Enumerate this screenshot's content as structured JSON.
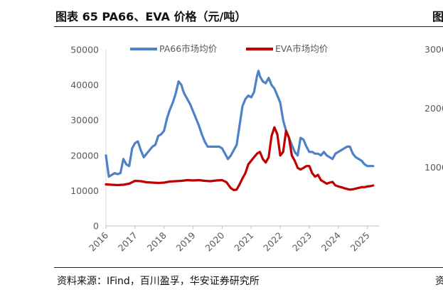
{
  "header": {
    "title": "图表 65 PA66、EVA 价格（元/吨）",
    "title_clip": "图"
  },
  "footer": {
    "source": "资料来源：IFind，百川盈孚，华安证券研究所",
    "source_clip": "资"
  },
  "chart_data": [
    {
      "type": "line",
      "title": "",
      "xlabel": "",
      "ylabel": "",
      "ylim": [
        0,
        50000
      ],
      "xlim": [
        2016,
        2025.4
      ],
      "yticks": [
        0,
        10000,
        20000,
        30000,
        40000,
        50000
      ],
      "xticks": [
        "2016",
        "2017",
        "2018",
        "2019",
        "2020",
        "2021",
        "2022",
        "2023",
        "2024",
        "2025"
      ],
      "legend": "top",
      "series": [
        {
          "name": "PA66市场均价",
          "color": "#4F81C7",
          "x": [
            2016.0,
            2016.05,
            2016.1,
            2016.2,
            2016.3,
            2016.4,
            2016.5,
            2016.6,
            2016.7,
            2016.8,
            2016.9,
            2017.0,
            2017.1,
            2017.2,
            2017.3,
            2017.4,
            2017.5,
            2017.6,
            2017.7,
            2017.8,
            2017.9,
            2018.0,
            2018.1,
            2018.2,
            2018.3,
            2018.4,
            2018.5,
            2018.6,
            2018.65,
            2018.7,
            2018.8,
            2018.9,
            2019.0,
            2019.1,
            2019.2,
            2019.3,
            2019.4,
            2019.5,
            2019.6,
            2019.7,
            2019.8,
            2019.9,
            2020.0,
            2020.1,
            2020.2,
            2020.3,
            2020.4,
            2020.5,
            2020.6,
            2020.7,
            2020.8,
            2020.9,
            2021.0,
            2021.1,
            2021.2,
            2021.25,
            2021.3,
            2021.4,
            2021.5,
            2021.6,
            2021.7,
            2021.8,
            2021.9,
            2022.0,
            2022.1,
            2022.2,
            2022.3,
            2022.4,
            2022.5,
            2022.6,
            2022.7,
            2022.8,
            2022.9,
            2023.0,
            2023.1,
            2023.2,
            2023.3,
            2023.4,
            2023.5,
            2023.6,
            2023.7,
            2023.8,
            2023.9,
            2024.0,
            2024.1,
            2024.2,
            2024.3,
            2024.4,
            2024.5,
            2024.6,
            2024.7,
            2024.8,
            2024.9,
            2025.0,
            2025.1,
            2025.2
          ],
          "values": [
            20000,
            17000,
            14000,
            14500,
            15000,
            14700,
            15000,
            19000,
            17500,
            17000,
            22000,
            23500,
            24000,
            21500,
            19500,
            20500,
            21500,
            22500,
            23000,
            25500,
            26000,
            27000,
            30500,
            33000,
            35000,
            37500,
            41000,
            40000,
            38500,
            37500,
            36000,
            34500,
            32500,
            30500,
            28500,
            26000,
            24000,
            22500,
            22500,
            22500,
            22500,
            22500,
            22000,
            20500,
            19000,
            20000,
            21500,
            23000,
            28500,
            34000,
            36000,
            37000,
            36500,
            38000,
            42500,
            44000,
            42500,
            41000,
            40500,
            42000,
            40000,
            39000,
            37000,
            35000,
            30000,
            27000,
            25000,
            23000,
            21000,
            20000,
            25000,
            24500,
            22500,
            21000,
            21000,
            20500,
            20500,
            20000,
            21000,
            20000,
            19500,
            19000,
            20500,
            21000,
            21500,
            22000,
            22500,
            22500,
            20500,
            19500,
            19000,
            18500,
            17500,
            17000,
            17000,
            17000
          ]
        },
        {
          "name": "EVA市场均价",
          "color": "#C00000",
          "x": [
            2016.0,
            2016.2,
            2016.4,
            2016.6,
            2016.8,
            2017.0,
            2017.2,
            2017.4,
            2017.6,
            2017.8,
            2018.0,
            2018.2,
            2018.4,
            2018.6,
            2018.8,
            2019.0,
            2019.2,
            2019.4,
            2019.6,
            2019.8,
            2020.0,
            2020.15,
            2020.3,
            2020.4,
            2020.5,
            2020.6,
            2020.7,
            2020.8,
            2020.9,
            2021.0,
            2021.1,
            2021.2,
            2021.3,
            2021.4,
            2021.5,
            2021.6,
            2021.7,
            2021.8,
            2021.9,
            2022.0,
            2022.1,
            2022.2,
            2022.3,
            2022.4,
            2022.5,
            2022.6,
            2022.7,
            2022.8,
            2022.9,
            2023.0,
            2023.1,
            2023.2,
            2023.3,
            2023.4,
            2023.5,
            2023.6,
            2023.7,
            2023.8,
            2023.9,
            2024.0,
            2024.1,
            2024.2,
            2024.3,
            2024.4,
            2024.5,
            2024.6,
            2024.7,
            2024.8,
            2024.9,
            2025.0,
            2025.1,
            2025.2
          ],
          "values": [
            11800,
            11700,
            11600,
            11700,
            12000,
            12800,
            12700,
            12400,
            12300,
            12200,
            12300,
            12600,
            12700,
            12800,
            13000,
            12900,
            13000,
            12800,
            12700,
            12900,
            13000,
            12400,
            10700,
            10200,
            10300,
            11800,
            13500,
            15000,
            17500,
            18500,
            19500,
            20500,
            21000,
            19000,
            18000,
            19500,
            25500,
            28000,
            26000,
            20000,
            21000,
            27000,
            25000,
            20000,
            18500,
            16500,
            16000,
            16500,
            17000,
            17000,
            15000,
            14000,
            14500,
            13000,
            12500,
            12000,
            12300,
            12500,
            11500,
            11200,
            11000,
            10700,
            10500,
            10300,
            10400,
            10600,
            10800,
            11000,
            11000,
            11200,
            11300,
            11500
          ]
        }
      ]
    },
    {
      "type": "line",
      "note": "clipped secondary chart on the right edge",
      "yticks_visible": [
        "3000",
        "2000",
        "1000"
      ],
      "series": []
    }
  ]
}
